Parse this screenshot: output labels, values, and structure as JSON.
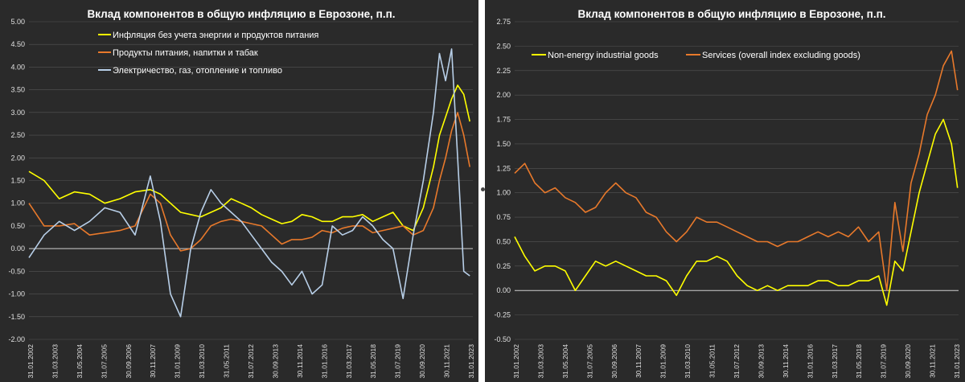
{
  "chart_data": [
    {
      "type": "line",
      "title": "Вклад компонентов в общую инфляцию в Еврозоне, п.п.",
      "xlabel": "",
      "ylabel": "",
      "ylim": [
        -2.0,
        5.0
      ],
      "ytick_step": 0.5,
      "grid": true,
      "legend": "top-left",
      "categories": [
        "31.01.2002",
        "31.03.2003",
        "31.05.2004",
        "31.07.2005",
        "30.09.2006",
        "30.11.2007",
        "31.01.2009",
        "31.03.2010",
        "31.05.2011",
        "31.07.2012",
        "30.09.2013",
        "30.11.2014",
        "31.01.2016",
        "31.03.2017",
        "31.05.2018",
        "31.07.2019",
        "30.09.2020",
        "30.11.2021",
        "31.01.2023"
      ],
      "x": [
        2002.0,
        2002.75,
        2003.5,
        2004.25,
        2005.0,
        2005.75,
        2006.5,
        2007.25,
        2008.0,
        2008.5,
        2009.0,
        2009.5,
        2010.0,
        2010.5,
        2011.0,
        2011.5,
        2012.0,
        2012.5,
        2013.0,
        2013.5,
        2014.0,
        2014.5,
        2015.0,
        2015.5,
        2016.0,
        2016.5,
        2017.0,
        2017.5,
        2018.0,
        2018.5,
        2019.0,
        2019.5,
        2020.0,
        2020.5,
        2021.0,
        2021.5,
        2022.0,
        2022.3,
        2022.6,
        2022.9,
        2023.2,
        2023.5,
        2023.8
      ],
      "series": [
        {
          "name": "Инфляция без учета энергии и продуктов питания",
          "color": "#ffff00",
          "values": [
            1.7,
            1.5,
            1.1,
            1.25,
            1.2,
            1.0,
            1.1,
            1.25,
            1.3,
            1.2,
            1.0,
            0.8,
            0.75,
            0.7,
            0.8,
            0.9,
            1.1,
            1.0,
            0.9,
            0.75,
            0.65,
            0.55,
            0.6,
            0.75,
            0.7,
            0.6,
            0.6,
            0.7,
            0.7,
            0.75,
            0.6,
            0.7,
            0.8,
            0.5,
            0.4,
            0.9,
            1.8,
            2.5,
            2.9,
            3.3,
            3.6,
            3.4,
            2.8
          ]
        },
        {
          "name": "Продукты питания, напитки и табак",
          "color": "#e8792b",
          "values": [
            1.0,
            0.5,
            0.5,
            0.55,
            0.3,
            0.35,
            0.4,
            0.5,
            1.2,
            1.0,
            0.3,
            -0.05,
            0.0,
            0.2,
            0.5,
            0.6,
            0.65,
            0.6,
            0.55,
            0.5,
            0.3,
            0.1,
            0.2,
            0.2,
            0.25,
            0.4,
            0.35,
            0.45,
            0.5,
            0.5,
            0.35,
            0.4,
            0.45,
            0.5,
            0.3,
            0.4,
            0.9,
            1.5,
            2.0,
            2.6,
            3.0,
            2.5,
            1.8
          ]
        },
        {
          "name": "Электричество, газ, отопление и топливо",
          "color": "#b8cfe8",
          "values": [
            -0.2,
            0.3,
            0.6,
            0.4,
            0.6,
            0.9,
            0.8,
            0.3,
            1.6,
            0.6,
            -1.0,
            -1.5,
            0.0,
            0.8,
            1.3,
            1.0,
            0.8,
            0.6,
            0.3,
            0.0,
            -0.3,
            -0.5,
            -0.8,
            -0.5,
            -1.0,
            -0.8,
            0.5,
            0.3,
            0.4,
            0.7,
            0.5,
            0.2,
            0.0,
            -1.1,
            0.3,
            1.5,
            3.0,
            4.3,
            3.7,
            4.4,
            2.0,
            -0.5,
            -0.6
          ]
        }
      ]
    },
    {
      "type": "line",
      "title": "Вклад компонентов в общую инфляцию в Еврозоне, п.п.",
      "xlabel": "",
      "ylabel": "",
      "ylim": [
        -0.5,
        2.75
      ],
      "ytick_step": 0.25,
      "grid": true,
      "legend": "top-left",
      "categories": [
        "31.01.2002",
        "31.03.2003",
        "31.05.2004",
        "31.07.2005",
        "30.09.2006",
        "30.11.2007",
        "31.01.2009",
        "31.03.2010",
        "31.05.2011",
        "31.07.2012",
        "30.09.2013",
        "30.11.2014",
        "31.01.2016",
        "31.03.2017",
        "31.05.2018",
        "31.07.2019",
        "30.09.2020",
        "30.11.2021",
        "31.01.2023"
      ],
      "x": [
        2002.0,
        2002.5,
        2003.0,
        2003.5,
        2004.0,
        2004.5,
        2005.0,
        2005.5,
        2006.0,
        2006.5,
        2007.0,
        2007.5,
        2008.0,
        2008.5,
        2009.0,
        2009.5,
        2010.0,
        2010.5,
        2011.0,
        2011.5,
        2012.0,
        2012.5,
        2013.0,
        2013.5,
        2014.0,
        2014.5,
        2015.0,
        2015.5,
        2016.0,
        2016.5,
        2017.0,
        2017.5,
        2018.0,
        2018.5,
        2019.0,
        2019.5,
        2020.0,
        2020.4,
        2020.8,
        2021.2,
        2021.6,
        2022.0,
        2022.4,
        2022.8,
        2023.2,
        2023.6,
        2023.9
      ],
      "series": [
        {
          "name": "Non-energy industrial goods",
          "color": "#ffff00",
          "values": [
            0.55,
            0.35,
            0.2,
            0.25,
            0.25,
            0.2,
            0.0,
            0.15,
            0.3,
            0.25,
            0.3,
            0.25,
            0.2,
            0.15,
            0.15,
            0.1,
            -0.05,
            0.15,
            0.3,
            0.3,
            0.35,
            0.3,
            0.15,
            0.05,
            0.0,
            0.05,
            0.0,
            0.05,
            0.05,
            0.05,
            0.1,
            0.1,
            0.05,
            0.05,
            0.1,
            0.1,
            0.15,
            -0.15,
            0.3,
            0.2,
            0.6,
            1.0,
            1.3,
            1.6,
            1.75,
            1.5,
            1.05
          ]
        },
        {
          "name": "Services (overall index excluding goods)",
          "color": "#e8792b",
          "values": [
            1.2,
            1.3,
            1.1,
            1.0,
            1.05,
            0.95,
            0.9,
            0.8,
            0.85,
            1.0,
            1.1,
            1.0,
            0.95,
            0.8,
            0.75,
            0.6,
            0.5,
            0.6,
            0.75,
            0.7,
            0.7,
            0.65,
            0.6,
            0.55,
            0.5,
            0.5,
            0.45,
            0.5,
            0.5,
            0.55,
            0.6,
            0.55,
            0.6,
            0.55,
            0.65,
            0.5,
            0.6,
            0.0,
            0.9,
            0.4,
            1.1,
            1.4,
            1.8,
            2.0,
            2.3,
            2.45,
            2.05
          ]
        }
      ]
    }
  ]
}
